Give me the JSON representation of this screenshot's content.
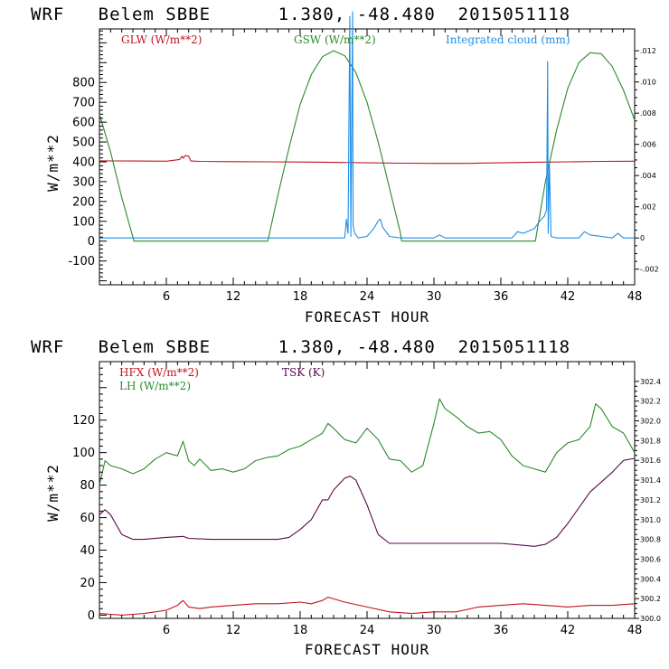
{
  "chart_data": [
    {
      "type": "line",
      "title": "WRF   Belem SBBE      1.380, -48.480  2015051118",
      "xlabel": "FORECAST HOUR",
      "ylabel": "W/m**2",
      "xlim": [
        0,
        48
      ],
      "ylim": [
        -220,
        1070
      ],
      "x_ticks": [
        "6",
        "12",
        "18",
        "24",
        "30",
        "36",
        "42",
        "48"
      ],
      "y_ticks": [
        "-100",
        "0",
        "100",
        "200",
        "300",
        "400",
        "500",
        "600",
        "700",
        "800"
      ],
      "y2_lim": [
        -0.003,
        0.0134
      ],
      "y2_ticks": [
        ".012",
        ".010",
        ".008",
        ".006",
        ".004",
        ".002",
        "0",
        "-.002"
      ],
      "colors": {
        "GLW": "#c0141e",
        "GSW": "#2a8a2a",
        "CLOUD": "#1e8ee8",
        "axis": "#000000"
      },
      "series": [
        {
          "name": "GLW (W/m**2)",
          "key": "GLW",
          "axis": "left",
          "x": [
            0,
            3,
            6,
            7.2,
            7.4,
            7.5,
            7.7,
            8,
            8.2,
            9,
            12,
            15,
            18,
            21,
            24,
            27,
            30,
            33,
            36,
            39,
            42,
            45,
            48
          ],
          "y": [
            405,
            404,
            403,
            412,
            428,
            418,
            432,
            428,
            404,
            402,
            401,
            400,
            399,
            397,
            395,
            393,
            392,
            392,
            395,
            398,
            400,
            402,
            403
          ]
        },
        {
          "name": "GSW (W/m**2)",
          "key": "GSW",
          "axis": "left",
          "x": [
            0,
            1,
            2,
            3,
            3.1,
            15.1,
            16,
            17,
            18,
            19,
            20,
            21,
            22,
            23,
            24,
            25,
            26,
            27,
            27.1,
            39.1,
            40,
            41,
            42,
            43,
            44,
            45,
            46,
            47,
            48
          ],
          "y": [
            640,
            450,
            220,
            20,
            0,
            0,
            230,
            470,
            690,
            840,
            930,
            960,
            935,
            850,
            700,
            500,
            270,
            40,
            0,
            0,
            300,
            560,
            770,
            900,
            950,
            945,
            880,
            760,
            610
          ]
        },
        {
          "name": "Integrated cloud (mm)",
          "key": "CLOUD",
          "axis": "right",
          "x": [
            0,
            20,
            22,
            22.15,
            22.3,
            22.45,
            22.55,
            22.7,
            22.75,
            22.9,
            23.2,
            24,
            24.6,
            25,
            25.2,
            25.4,
            26,
            27,
            30,
            30.5,
            31,
            37,
            37.5,
            38,
            39,
            39.5,
            39.9,
            40.1,
            40.2,
            40.25,
            40.35,
            40.5,
            41,
            43,
            43.5,
            44,
            46,
            46.5,
            47,
            48
          ],
          "y": [
            0,
            0,
            0,
            0.0012,
            0.0003,
            0.0142,
            0.0001,
            0.0145,
            0.0008,
            0.0003,
            0,
            0.0001,
            0.0006,
            0.0011,
            0.0012,
            0.0007,
            0.0001,
            0,
            0,
            0.0002,
            0,
            0,
            0.0004,
            0.0003,
            0.0006,
            0.0011,
            0.0014,
            0.0018,
            0.0113,
            0.0003,
            0.0048,
            0.0001,
            0,
            0,
            0.0004,
            0.0002,
            0,
            0.0003,
            0,
            0
          ]
        }
      ]
    },
    {
      "type": "line",
      "title": "WRF   Belem SBBE      1.380, -48.480  2015051118",
      "xlabel": "FORECAST HOUR",
      "ylabel": "W/m**2",
      "xlim": [
        0,
        48
      ],
      "ylim": [
        -2,
        156
      ],
      "x_ticks": [
        "6",
        "12",
        "18",
        "24",
        "30",
        "36",
        "42",
        "48"
      ],
      "y_ticks": [
        "0",
        "20",
        "40",
        "60",
        "80",
        "100",
        "120"
      ],
      "y2_lim": [
        300.0,
        302.6
      ],
      "y2_ticks": [
        "302.4",
        "302.2",
        "302.0",
        "301.8",
        "301.6",
        "301.4",
        "301.2",
        "301.0",
        "300.8",
        "300.6",
        "300.4",
        "300.2",
        "300.0"
      ],
      "colors": {
        "HFX": "#c0141e",
        "LH": "#2a8a2a",
        "TSK": "#5a0a4a",
        "axis": "#000000"
      },
      "series": [
        {
          "name": "HFX (W/m**2)",
          "key": "HFX",
          "axis": "left",
          "x": [
            0,
            1,
            2,
            3,
            4,
            5,
            6,
            7,
            7.5,
            8,
            9,
            10,
            12,
            14,
            16,
            18,
            19,
            20,
            20.5,
            21,
            22,
            24,
            26,
            28,
            30,
            32,
            34,
            36,
            38,
            40,
            42,
            44,
            46,
            48
          ],
          "y": [
            1,
            0.5,
            0,
            0.5,
            1,
            2,
            3,
            6,
            9,
            5,
            4,
            5,
            6,
            7,
            7,
            8,
            7,
            9,
            11,
            10,
            8,
            5,
            2,
            1,
            2,
            2,
            5,
            6,
            7,
            6,
            5,
            6,
            6,
            7
          ]
        },
        {
          "name": "LH (W/m**2)",
          "key": "LH",
          "axis": "left",
          "x": [
            0,
            0.5,
            1,
            2,
            3,
            4,
            5,
            6,
            7,
            7.5,
            8,
            8.5,
            9,
            10,
            11,
            12,
            13,
            14,
            15,
            16,
            17,
            18,
            19,
            20,
            20.5,
            21,
            22,
            23,
            24,
            25,
            26,
            27,
            28,
            29,
            30,
            30.5,
            31,
            32,
            33,
            34,
            35,
            36,
            37,
            38,
            39,
            40,
            41,
            42,
            43,
            44,
            44.5,
            45,
            46,
            47,
            48
          ],
          "y": [
            80,
            95,
            92,
            90,
            87,
            90,
            96,
            100,
            98,
            107,
            95,
            92,
            96,
            89,
            90,
            88,
            90,
            95,
            97,
            98,
            102,
            104,
            108,
            112,
            118,
            115,
            108,
            106,
            115,
            108,
            96,
            95,
            88,
            92,
            118,
            133,
            127,
            122,
            116,
            112,
            113,
            108,
            98,
            92,
            90,
            88,
            100,
            106,
            108,
            116,
            130,
            127,
            116,
            112,
            100
          ]
        },
        {
          "name": "TSK (K)",
          "key": "TSK",
          "axis": "right",
          "x": [
            0,
            0.5,
            1,
            2,
            3,
            4,
            6,
            7.5,
            8,
            10,
            12,
            14,
            16,
            17,
            18,
            19,
            20,
            20.5,
            21,
            22,
            22.5,
            23,
            24,
            25,
            26,
            28,
            30,
            32,
            34,
            36,
            38,
            39,
            40,
            41,
            42,
            43,
            44,
            45,
            46,
            47,
            48
          ],
          "y": [
            301.05,
            301.1,
            301.05,
            300.85,
            300.8,
            300.8,
            300.82,
            300.83,
            300.81,
            300.8,
            300.8,
            300.8,
            300.8,
            300.82,
            300.9,
            301.0,
            301.2,
            301.2,
            301.3,
            301.42,
            301.44,
            301.4,
            301.15,
            300.85,
            300.76,
            300.76,
            300.76,
            300.76,
            300.76,
            300.76,
            300.74,
            300.73,
            300.75,
            300.82,
            300.96,
            301.12,
            301.28,
            301.38,
            301.48,
            301.6,
            301.62
          ]
        }
      ]
    }
  ]
}
